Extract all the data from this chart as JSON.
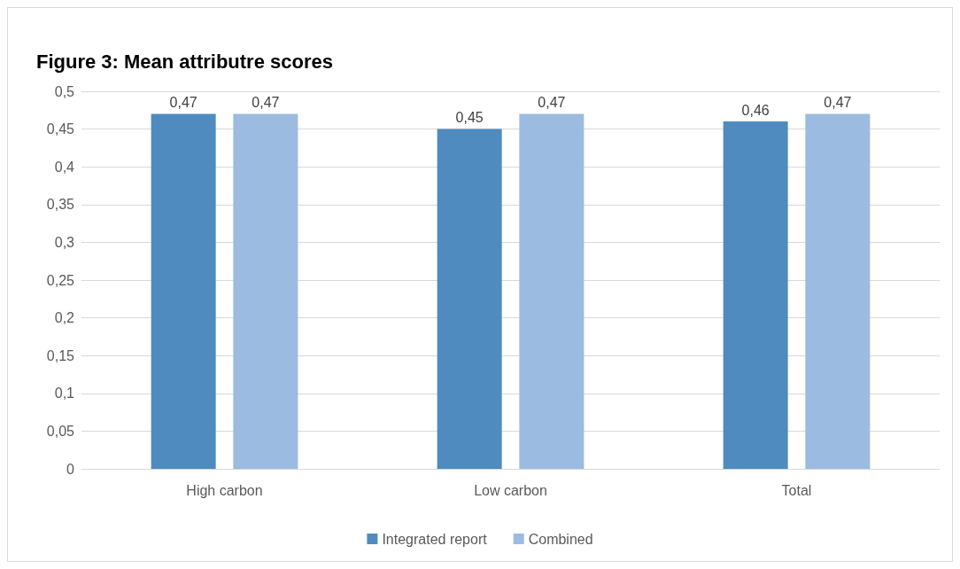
{
  "chart_data": {
    "type": "bar",
    "title": "Figure 3: Mean attributre scores",
    "categories": [
      "High carbon",
      "Low carbon",
      "Total"
    ],
    "series": [
      {
        "name": "Integrated report",
        "color": "#4f8bbf",
        "values": [
          0.47,
          0.45,
          0.46
        ],
        "value_labels": [
          "0,47",
          "0,45",
          "0,46"
        ]
      },
      {
        "name": "Combined",
        "color": "#9bbbe0",
        "values": [
          0.47,
          0.47,
          0.47
        ],
        "value_labels": [
          "0,47",
          "0,47",
          "0,47"
        ]
      }
    ],
    "ylim": [
      0,
      0.5
    ],
    "yticks": [
      0,
      {
        "value": 0.05,
        "label": "0,05"
      },
      {
        "value": 0.1,
        "label": "0,1"
      },
      {
        "value": 0.15,
        "label": "0,15"
      },
      {
        "value": 0.2,
        "label": "0,2"
      },
      {
        "value": 0.25,
        "label": "0,25"
      },
      {
        "value": 0.3,
        "label": "0,3"
      },
      {
        "value": 0.35,
        "label": "0,35"
      },
      {
        "value": 0.4,
        "label": "0,4"
      },
      {
        "value": 0.45,
        "label": "0,45"
      },
      {
        "value": 0.5,
        "label": "0,5"
      }
    ],
    "grid": "y",
    "legend": "bottom"
  }
}
